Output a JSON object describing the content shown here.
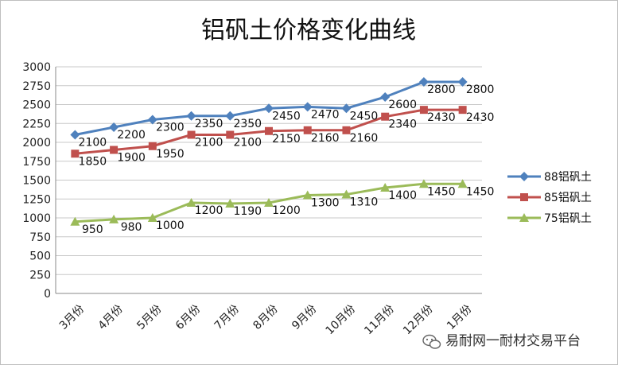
{
  "chart_data": {
    "type": "line",
    "title": "铝矾土价格变化曲线",
    "xlabel": "",
    "ylabel": "",
    "categories": [
      "3月份",
      "4月份",
      "5月份",
      "6月份",
      "7月份",
      "8月份",
      "9月份",
      "10月份",
      "11月份",
      "12月份",
      "1月份"
    ],
    "ylim": [
      0,
      3000
    ],
    "yticks": [
      0,
      250,
      500,
      750,
      1000,
      1250,
      1500,
      1750,
      2000,
      2250,
      2500,
      2750,
      3000
    ],
    "grid": true,
    "legend_position": "right",
    "series": [
      {
        "name": "88铝矾土",
        "color": "#4f81bd",
        "marker": "diamond",
        "values": [
          2100,
          2200,
          2300,
          2350,
          2350,
          2450,
          2470,
          2450,
          2600,
          2800,
          2800
        ]
      },
      {
        "name": "85铝矾土",
        "color": "#c0504d",
        "marker": "square",
        "values": [
          1850,
          1900,
          1950,
          2100,
          2100,
          2150,
          2160,
          2160,
          2340,
          2430,
          2430
        ]
      },
      {
        "name": "75铝矾土",
        "color": "#9bbb59",
        "marker": "triangle",
        "values": [
          950,
          980,
          1000,
          1200,
          1190,
          1200,
          1300,
          1310,
          1400,
          1450,
          1450
        ]
      }
    ]
  },
  "watermark": {
    "text": "易耐网一耐材交易平台",
    "icon": "wechat-icon"
  }
}
